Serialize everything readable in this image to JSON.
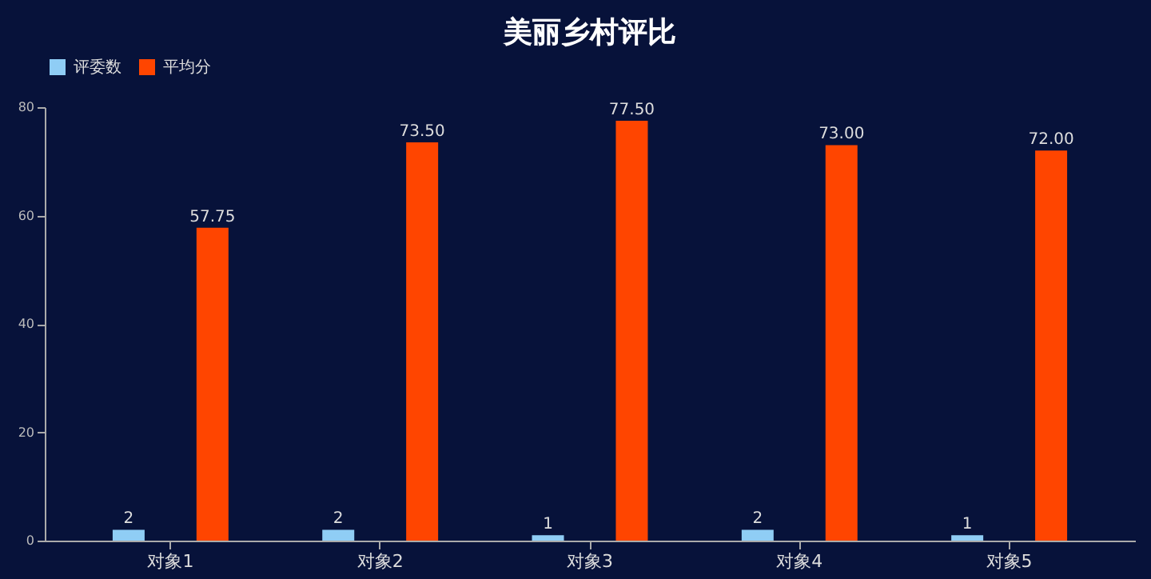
{
  "chart_data": {
    "type": "bar",
    "title": "美丽乡村评比",
    "categories": [
      "对象1",
      "对象2",
      "对象3",
      "对象4",
      "对象5"
    ],
    "series": [
      {
        "name": "评委数",
        "color": "#8fcdf5",
        "values": [
          2,
          2,
          1,
          2,
          1
        ],
        "value_labels": [
          "2",
          "2",
          "1",
          "2",
          "1"
        ]
      },
      {
        "name": "平均分",
        "color": "#ff4500",
        "values": [
          57.75,
          73.5,
          77.5,
          73.0,
          72.0
        ],
        "value_labels": [
          "57.75",
          "73.50",
          "77.50",
          "73.00",
          "72.00"
        ]
      }
    ],
    "ylim": [
      0,
      80
    ],
    "yticks": [
      0,
      20,
      40,
      60,
      80
    ],
    "grid": false,
    "legend": "top"
  }
}
